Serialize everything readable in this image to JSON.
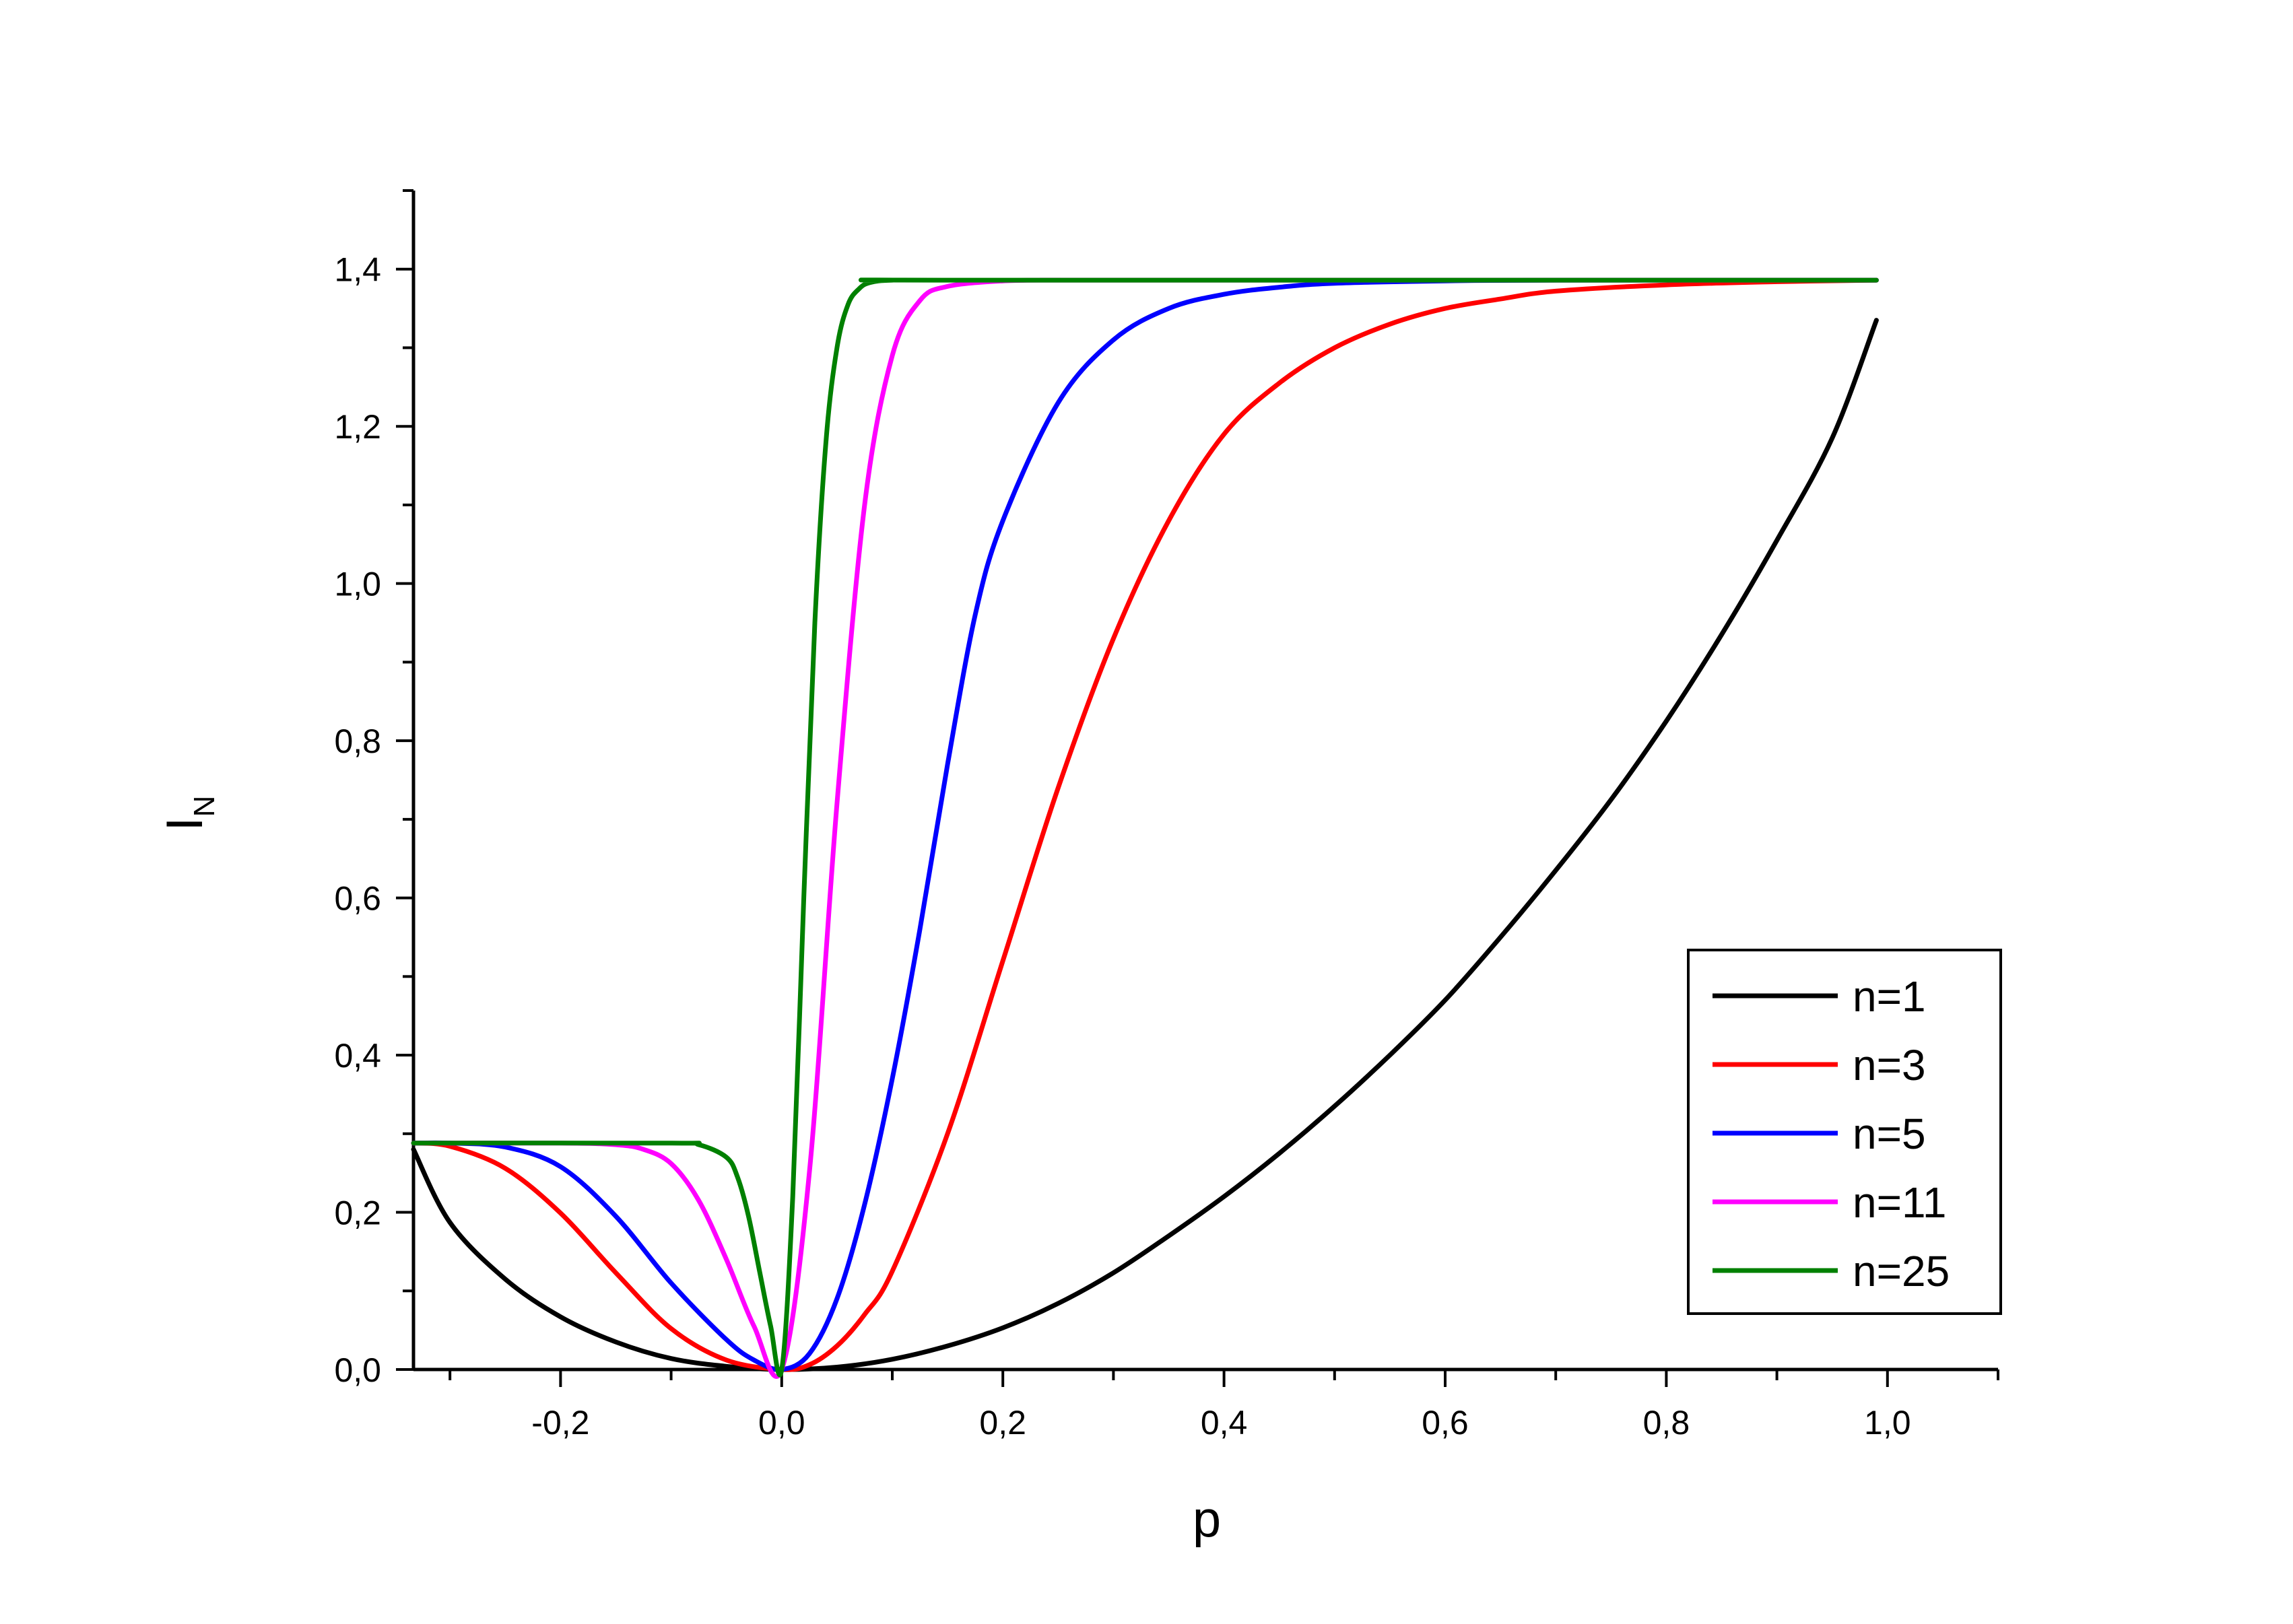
{
  "chart_data": {
    "type": "line",
    "title": "",
    "xlabel": "p",
    "ylabel": "I",
    "ylabel_subscript": "N",
    "xlim": [
      -0.333,
      1.1
    ],
    "ylim": [
      0,
      1.5
    ],
    "grid": false,
    "legend_position": "bottom-right",
    "x_ticks": [
      -0.2,
      0.0,
      0.2,
      0.4,
      0.6,
      0.8,
      1.0
    ],
    "x_tick_labels": [
      "-0,2",
      "0,0",
      "0,2",
      "0,4",
      "0,6",
      "0,8",
      "1,0"
    ],
    "y_ticks": [
      0.0,
      0.2,
      0.4,
      0.6,
      0.8,
      1.0,
      1.2,
      1.4
    ],
    "y_tick_labels": [
      "0,0",
      "0,2",
      "0,4",
      "0,6",
      "0,8",
      "1,0",
      "1,2",
      "1,4"
    ],
    "series": [
      {
        "name": "n=1",
        "color": "#000000",
        "x": [
          -0.333,
          -0.3,
          -0.25,
          -0.2,
          -0.15,
          -0.1,
          -0.05,
          0.0,
          0.05,
          0.1,
          0.15,
          0.2,
          0.25,
          0.3,
          0.35,
          0.4,
          0.45,
          0.5,
          0.55,
          0.6,
          0.65,
          0.7,
          0.75,
          0.8,
          0.85,
          0.9,
          0.95,
          0.99
        ],
        "y": [
          0.28,
          0.187,
          0.115,
          0.067,
          0.035,
          0.014,
          0.004,
          0.0,
          0.003,
          0.013,
          0.03,
          0.053,
          0.084,
          0.123,
          0.17,
          0.22,
          0.275,
          0.335,
          0.4,
          0.47,
          0.55,
          0.635,
          0.725,
          0.825,
          0.935,
          1.055,
          1.185,
          1.335
        ]
      },
      {
        "name": "n=3",
        "color": "#ff0000",
        "x": [
          -0.333,
          -0.3,
          -0.25,
          -0.2,
          -0.15,
          -0.1,
          -0.05,
          0.0,
          0.025,
          0.05,
          0.075,
          0.1,
          0.15,
          0.2,
          0.25,
          0.3,
          0.35,
          0.4,
          0.45,
          0.5,
          0.55,
          0.6,
          0.65,
          0.7,
          0.8,
          0.9,
          0.99
        ],
        "y": [
          0.288,
          0.284,
          0.256,
          0.199,
          0.123,
          0.052,
          0.012,
          0.0,
          0.006,
          0.03,
          0.07,
          0.125,
          0.3,
          0.52,
          0.74,
          0.93,
          1.08,
          1.19,
          1.255,
          1.3,
          1.33,
          1.35,
          1.362,
          1.372,
          1.38,
          1.384,
          1.386
        ]
      },
      {
        "name": "n=5",
        "color": "#0000ff",
        "x": [
          -0.333,
          -0.3,
          -0.25,
          -0.2,
          -0.15,
          -0.1,
          -0.05,
          -0.025,
          0.0,
          0.025,
          0.05,
          0.075,
          0.1,
          0.125,
          0.15,
          0.175,
          0.2,
          0.25,
          0.3,
          0.35,
          0.4,
          0.45,
          0.5,
          0.6,
          0.7,
          0.99
        ],
        "y": [
          0.288,
          0.288,
          0.283,
          0.258,
          0.195,
          0.11,
          0.038,
          0.012,
          0.0,
          0.02,
          0.09,
          0.21,
          0.37,
          0.56,
          0.77,
          0.96,
          1.08,
          1.23,
          1.31,
          1.35,
          1.368,
          1.377,
          1.382,
          1.385,
          1.386,
          1.386
        ]
      },
      {
        "name": "n=11",
        "color": "#ff00ff",
        "x": [
          -0.333,
          -0.2,
          -0.15,
          -0.125,
          -0.1,
          -0.075,
          -0.05,
          -0.025,
          0.0,
          0.025,
          0.05,
          0.075,
          0.1,
          0.125,
          0.15,
          0.2,
          0.25,
          0.3,
          0.99
        ],
        "y": [
          0.288,
          0.288,
          0.286,
          0.28,
          0.262,
          0.215,
          0.14,
          0.055,
          0.0,
          0.25,
          0.72,
          1.1,
          1.29,
          1.36,
          1.378,
          1.385,
          1.386,
          1.386,
          1.386
        ]
      },
      {
        "name": "n=25",
        "color": "#008000",
        "x": [
          -0.333,
          -0.1,
          -0.075,
          -0.05,
          -0.04,
          -0.03,
          -0.02,
          -0.01,
          0.0,
          0.01,
          0.02,
          0.03,
          0.04,
          0.05,
          0.06,
          0.07,
          0.08,
          0.1,
          0.15,
          0.99
        ],
        "y": [
          0.288,
          0.288,
          0.286,
          0.27,
          0.245,
          0.195,
          0.125,
          0.055,
          0.0,
          0.22,
          0.6,
          0.95,
          1.18,
          1.3,
          1.355,
          1.375,
          1.383,
          1.386,
          1.386,
          1.386
        ]
      }
    ]
  }
}
